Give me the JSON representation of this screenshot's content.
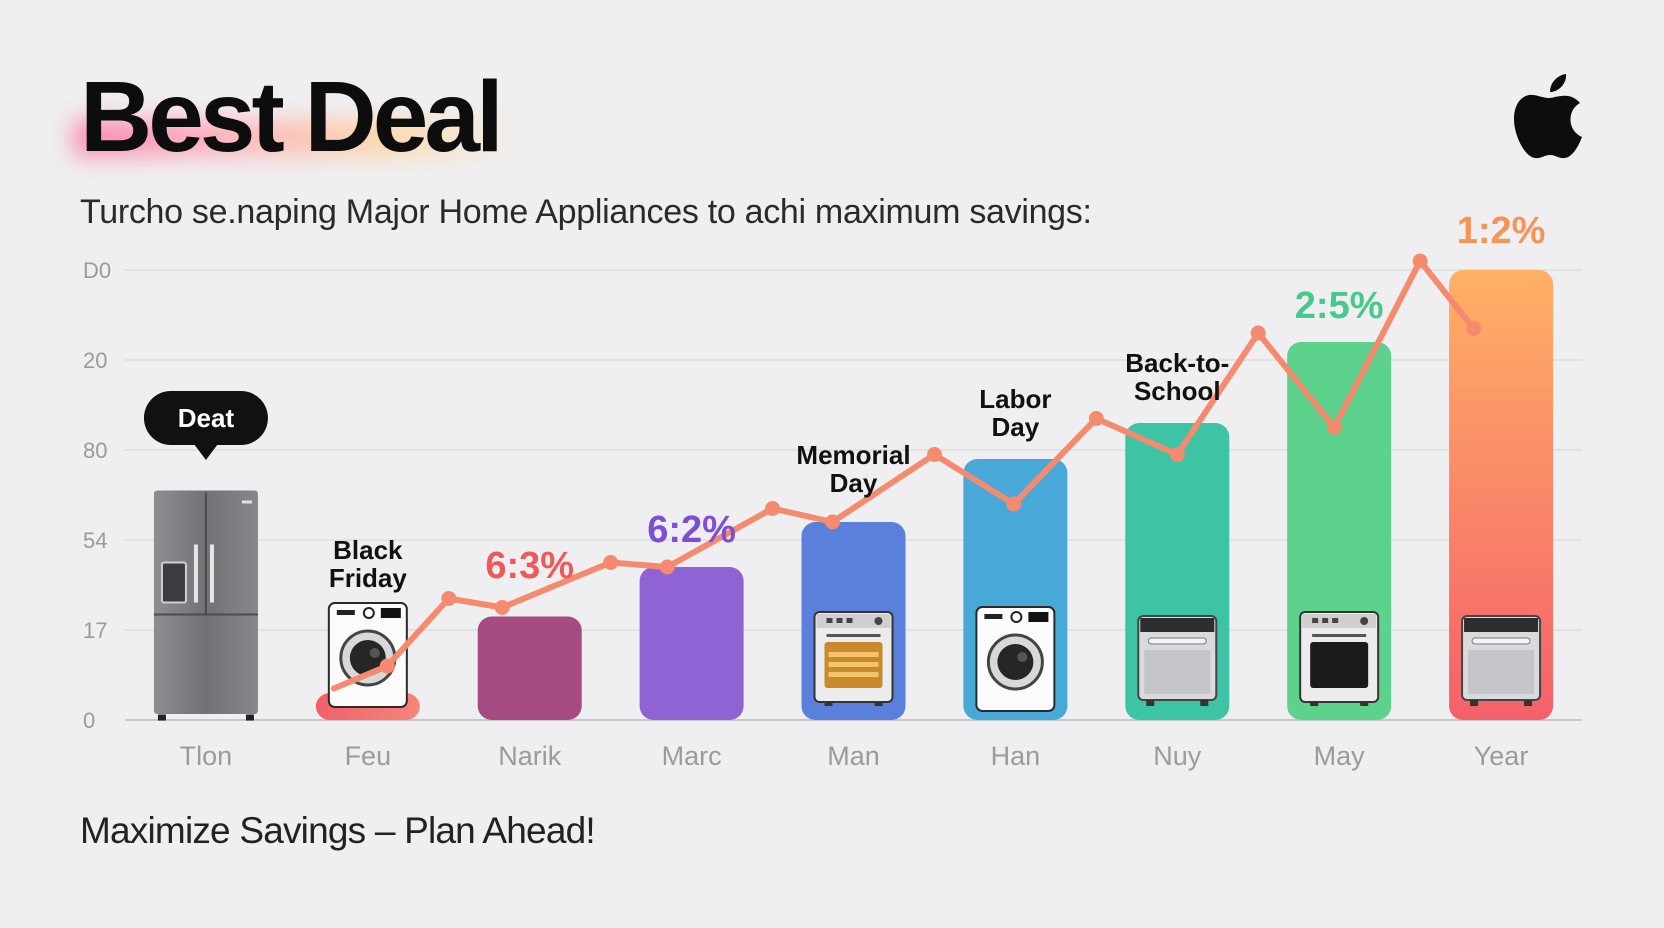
{
  "header": {
    "title": "Best Deal",
    "subtitle": "Turcho se.naping Major Home Appliances to achi maximum savings:",
    "logo_icon": "apple-logo-icon"
  },
  "footer": {
    "text": "Maximize Savings – Plan Ahead!"
  },
  "callout": {
    "text": "Deat"
  },
  "chart_data": {
    "type": "bar",
    "title": "",
    "xlabel": "",
    "ylabel": "",
    "grid": true,
    "y_tick_labels": [
      "0",
      "17",
      "54",
      "80",
      "20",
      "D0"
    ],
    "categories": [
      "Tlon",
      "Feu",
      "Narik",
      "Marc",
      "Man",
      "Han",
      "Nuy",
      "May",
      "Year"
    ],
    "values": [
      0.51,
      0.06,
      0.23,
      0.34,
      0.44,
      0.58,
      0.66,
      0.84,
      1.0
    ],
    "line": [
      [
        1.29,
        0.07
      ],
      [
        1.62,
        0.12
      ],
      [
        2.0,
        0.27
      ],
      [
        2.33,
        0.25
      ],
      [
        3.0,
        0.35
      ],
      [
        3.35,
        0.34
      ],
      [
        4.0,
        0.47
      ],
      [
        4.37,
        0.44
      ],
      [
        5.0,
        0.59
      ],
      [
        5.49,
        0.48
      ],
      [
        6.0,
        0.67
      ],
      [
        6.5,
        0.59
      ],
      [
        7.0,
        0.86
      ],
      [
        7.47,
        0.65
      ],
      [
        8.0,
        1.02
      ],
      [
        8.33,
        0.87
      ]
    ],
    "bar_colors": [
      "#7b7d80",
      "#f47a6c",
      "#a64b82",
      "#8f63d4",
      "#5a80dc",
      "#48a9d8",
      "#3cc4a4",
      "#5cd28c",
      "#fb8a5e"
    ],
    "line_color": "#f48a6e",
    "event_labels": [
      {
        "index": 1,
        "lines": [
          "Black",
          "Friday"
        ]
      },
      {
        "index": 4,
        "lines": [
          "Memorial",
          "Day"
        ]
      },
      {
        "index": 5,
        "lines": [
          "Labor",
          "Day"
        ]
      },
      {
        "index": 6,
        "lines": [
          "Back-to-",
          "School"
        ]
      }
    ],
    "percent_labels": [
      {
        "index": 2,
        "text": "6:3%",
        "color": "#ee5a5a"
      },
      {
        "index": 3,
        "text": "6:2%",
        "color": "#7c4fd6"
      },
      {
        "index": 7,
        "text": "2:5%",
        "color": "#46c98a"
      },
      {
        "index": 8,
        "text": "1:2%",
        "color": "#f79354"
      }
    ],
    "appliance_icons": [
      "refrigerator-icon",
      "washing-machine-icon",
      "none",
      "none",
      "oven-icon",
      "washing-machine-icon",
      "dishwasher-icon",
      "oven-icon",
      "dishwasher-icon"
    ]
  }
}
